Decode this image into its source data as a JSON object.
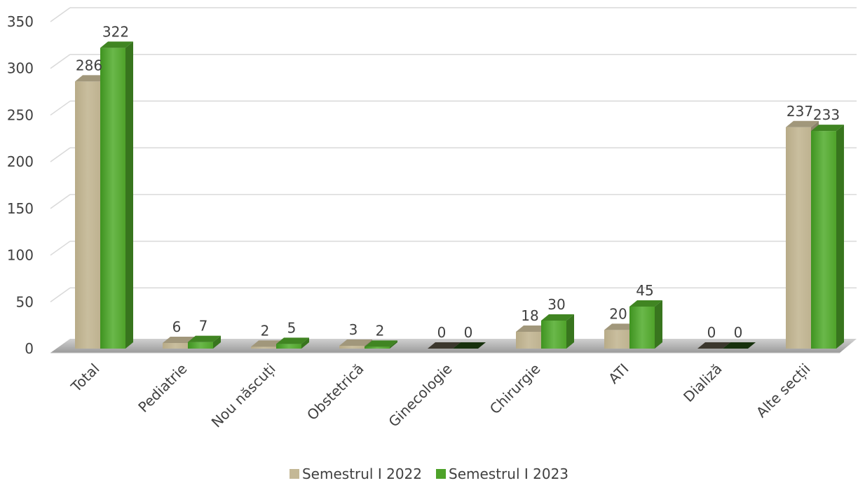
{
  "chart_data": {
    "type": "bar",
    "categories": [
      "Total",
      "Pediatrie",
      "Nou născuți",
      "Obstetrică",
      "Ginecologie",
      "Chirurgie",
      "ATI",
      "Dializă",
      "Alte secții"
    ],
    "series": [
      {
        "name": "Semestrul I 2022",
        "values": [
          286,
          6,
          2,
          3,
          0,
          18,
          20,
          0,
          237
        ],
        "color": "#c4b896"
      },
      {
        "name": "Semestrul I 2023",
        "values": [
          322,
          7,
          5,
          2,
          0,
          30,
          45,
          0,
          233
        ],
        "color": "#4ea22a"
      }
    ],
    "ylim": [
      0,
      350
    ],
    "yticks": [
      0,
      50,
      100,
      150,
      200,
      250,
      300,
      350
    ],
    "grid": true,
    "legend": "bottom",
    "style": "3d-clustered-column"
  }
}
